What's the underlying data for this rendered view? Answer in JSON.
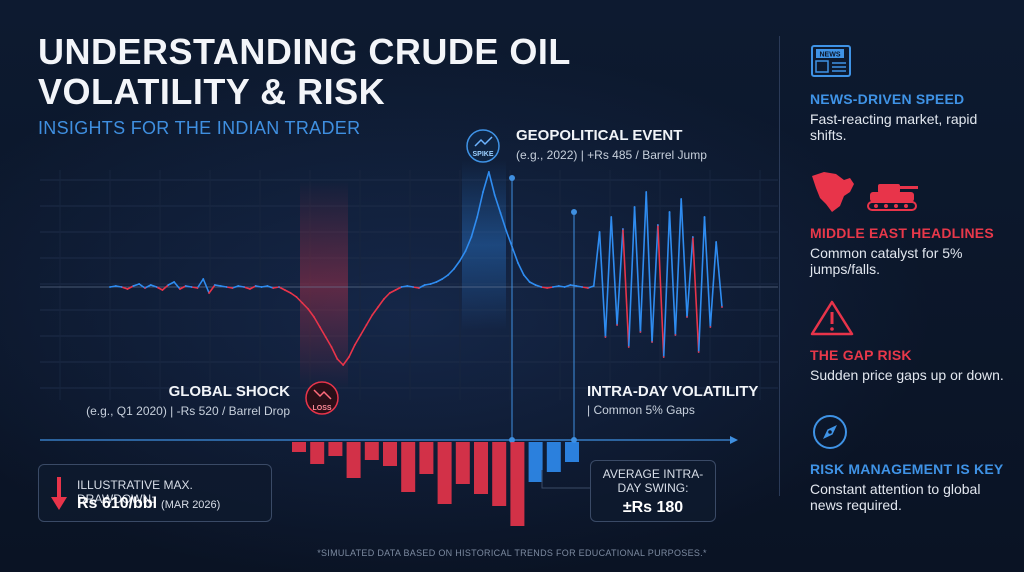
{
  "header": {
    "title": "UNDERSTANDING CRUDE OIL VOLATILITY & RISK",
    "subtitle": "INSIGHTS FOR THE INDIAN TRADER"
  },
  "annotations": {
    "geopolitical": {
      "badge": "SPIKE",
      "title": "GEOPOLITICAL EVENT",
      "subtitle": "(e.g., 2022) | +Rs 485 / Barrel Jump"
    },
    "global_shock": {
      "badge": "LOSS",
      "title": "GLOBAL SHOCK",
      "subtitle": "(e.g., Q1 2020) | -Rs 520 / Barrel Drop"
    },
    "intraday": {
      "title": "INTRA-DAY VOLATILITY",
      "subtitle": "| Common 5% Gaps"
    }
  },
  "drawdown": {
    "label": "ILLUSTRATIVE MAX. DRAWDOWN:",
    "value": "Rs 610/bbl",
    "date": "(MAR 2026)"
  },
  "swing": {
    "label": "AVERAGE INTRA-DAY SWING:",
    "value": "±Rs 180"
  },
  "footnote": "*SIMULATED DATA BASED ON HISTORICAL TRENDS FOR EDUCATIONAL PURPOSES.*",
  "sidebar": {
    "items": [
      {
        "icon": "newspaper-icon",
        "badge": "NEWS",
        "title": "NEWS-DRIVEN SPEED",
        "title_color": "#3f93e6",
        "desc": "Fast-reacting market, rapid shifts."
      },
      {
        "icon": "middle-east-map-tank-icon",
        "title": "MIDDLE EAST HEADLINES",
        "title_color": "#e8384a",
        "desc": "Common catalyst for 5% jumps/falls."
      },
      {
        "icon": "warning-triangle-icon",
        "title": "THE GAP RISK",
        "title_color": "#e8384a",
        "desc": "Sudden price gaps up or down."
      },
      {
        "icon": "compass-icon",
        "title": "RISK MANAGEMENT IS KEY",
        "title_color": "#3f93e6",
        "desc": "Constant attention to global news required."
      }
    ]
  },
  "colors": {
    "blue": "#2f8cf0",
    "red": "#e8344a",
    "background": "#0b1426"
  },
  "chart_data": {
    "type": "line",
    "title": "",
    "xlabel": "",
    "ylabel": "",
    "series": [
      {
        "values": [
          0,
          1,
          0,
          -2,
          1,
          3,
          -1,
          2,
          0,
          -3,
          2,
          5,
          -2,
          1,
          0,
          -1,
          8,
          -6,
          2,
          1,
          0,
          -1,
          1,
          0,
          -2,
          1,
          0,
          1,
          -1,
          0,
          -3,
          -6,
          -10,
          -16,
          -22,
          -30,
          -40,
          -50,
          -60,
          -72,
          -78,
          -70,
          -58,
          -48,
          -38,
          -28,
          -20,
          -12,
          -6,
          -3,
          0,
          1,
          0,
          -1,
          2,
          3,
          5,
          8,
          12,
          18,
          26,
          36,
          50,
          70,
          95,
          115,
          92,
          74,
          56,
          40,
          24,
          12,
          5,
          2,
          0,
          -1,
          0,
          1,
          0,
          2,
          1,
          0,
          -1,
          1,
          55,
          -50,
          70,
          -38,
          58,
          -60,
          80,
          -45,
          95,
          -55,
          62,
          -70,
          75,
          -48,
          88,
          -30,
          50,
          -65,
          70,
          -40,
          45,
          -20
        ]
      }
    ],
    "bars": {
      "values": [
        -10,
        -22,
        -14,
        -36,
        -18,
        -24,
        -50,
        -32,
        -62,
        -42,
        -52,
        -64,
        -84,
        -40,
        -30,
        -20
      ],
      "colors": [
        "red",
        "red",
        "red",
        "red",
        "red",
        "red",
        "red",
        "red",
        "red",
        "red",
        "red",
        "red",
        "red",
        "blue",
        "blue",
        "blue"
      ]
    }
  }
}
